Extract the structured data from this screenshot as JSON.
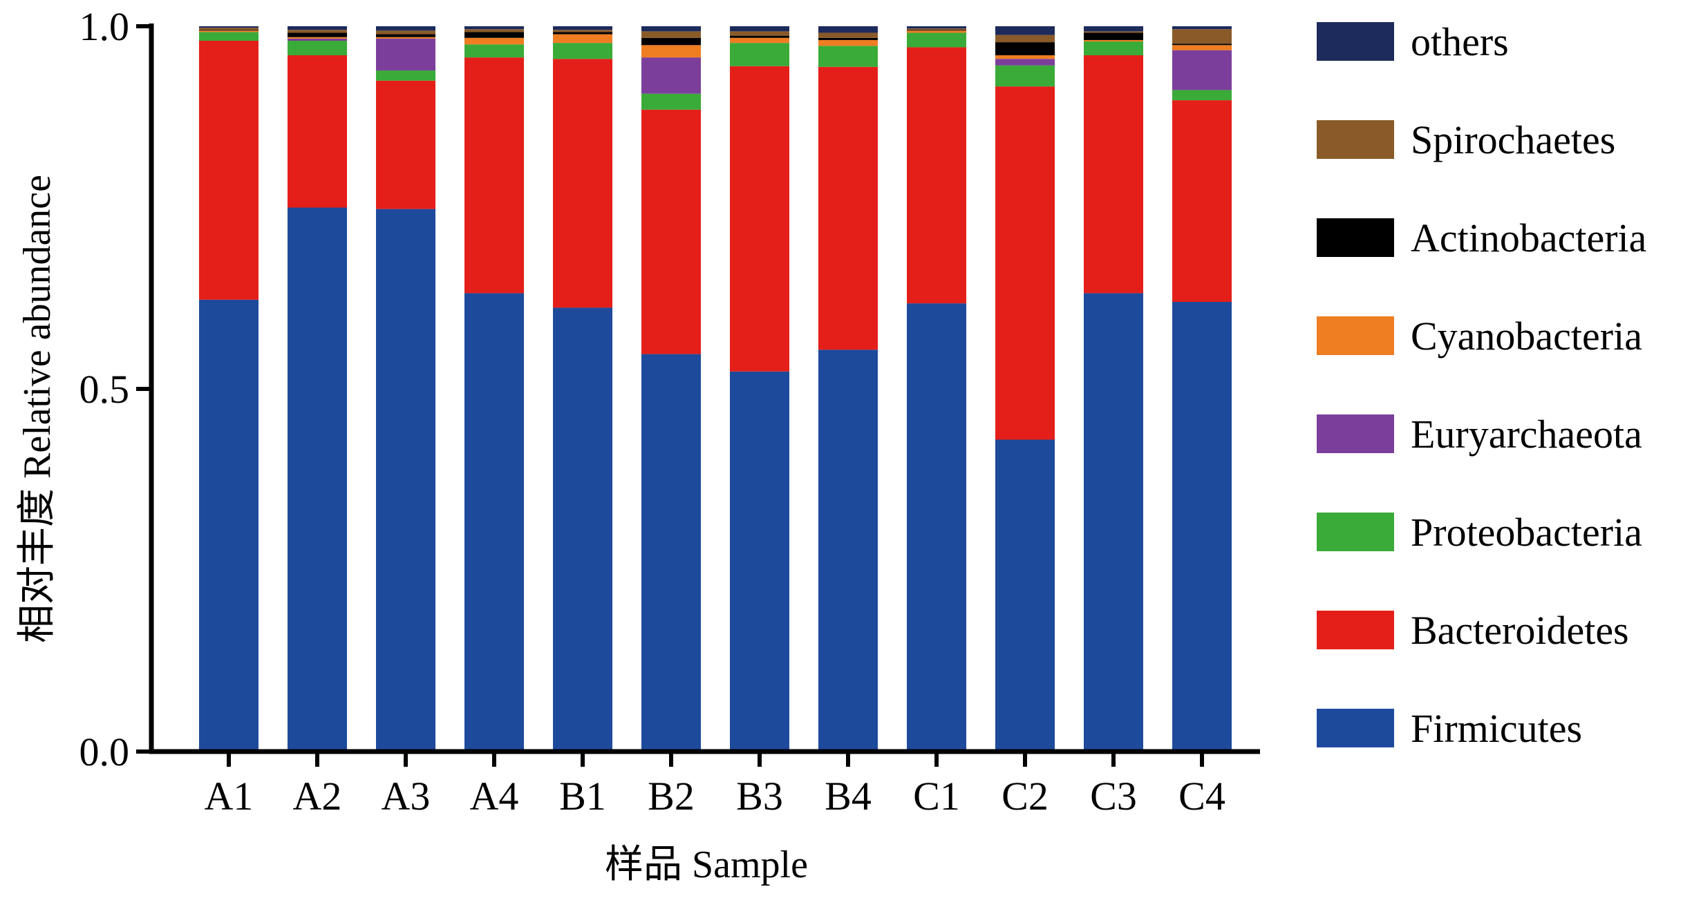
{
  "chart_data": {
    "type": "bar",
    "stacked": true,
    "categories": [
      "A1",
      "A2",
      "A3",
      "A4",
      "B1",
      "B2",
      "B3",
      "B4",
      "C1",
      "C2",
      "C3",
      "C4"
    ],
    "xlabel": "样品  Sample",
    "ylabel": "相对丰度  Relative abundance",
    "ylim": [
      0.0,
      1.0
    ],
    "yticks": [
      "0.0",
      "0.5",
      "1.0"
    ],
    "legend_position": "right",
    "series": [
      {
        "name": "Firmicutes",
        "color": "#1e4a9c",
        "values": [
          0.623,
          0.75,
          0.748,
          0.632,
          0.612,
          0.548,
          0.524,
          0.554,
          0.618,
          0.43,
          0.632,
          0.62
        ]
      },
      {
        "name": "Bacteroidetes",
        "color": "#e41f1a",
        "values": [
          0.357,
          0.21,
          0.177,
          0.325,
          0.343,
          0.337,
          0.421,
          0.39,
          0.353,
          0.487,
          0.328,
          0.278
        ]
      },
      {
        "name": "Proteobacteria",
        "color": "#3aab38",
        "values": [
          0.012,
          0.02,
          0.014,
          0.018,
          0.022,
          0.022,
          0.032,
          0.029,
          0.02,
          0.029,
          0.019,
          0.014
        ]
      },
      {
        "name": "Euryarchaeota",
        "color": "#7b3f9b",
        "values": [
          0.0,
          0.003,
          0.044,
          0.0,
          0.0,
          0.05,
          0.0,
          0.0,
          0.0,
          0.009,
          0.0,
          0.055
        ]
      },
      {
        "name": "Cyanobacteria",
        "color": "#ef7d22",
        "values": [
          0.002,
          0.002,
          0.002,
          0.009,
          0.012,
          0.017,
          0.007,
          0.008,
          0.003,
          0.005,
          0.002,
          0.007
        ]
      },
      {
        "name": "Actinobacteria",
        "color": "#000000",
        "values": [
          0.001,
          0.006,
          0.004,
          0.008,
          0.003,
          0.01,
          0.003,
          0.003,
          0.001,
          0.018,
          0.01,
          0.002
        ]
      },
      {
        "name": "Spirochaetes",
        "color": "#8a5a28",
        "values": [
          0.003,
          0.004,
          0.005,
          0.004,
          0.003,
          0.009,
          0.006,
          0.007,
          0.002,
          0.01,
          0.002,
          0.02
        ]
      },
      {
        "name": "others",
        "color": "#1d2b5c",
        "values": [
          0.002,
          0.005,
          0.006,
          0.004,
          0.005,
          0.007,
          0.007,
          0.009,
          0.003,
          0.012,
          0.007,
          0.004
        ]
      }
    ]
  }
}
